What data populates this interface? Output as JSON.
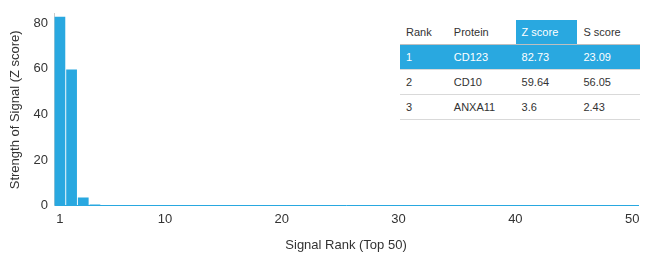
{
  "chart_data": {
    "type": "bar",
    "x_label": "Signal Rank (Top 50)",
    "y_label": "Strength of Signal (Z score)",
    "categories": [
      1,
      null,
      null,
      null,
      null,
      null,
      null,
      null,
      null,
      10,
      null,
      null,
      null,
      null,
      null,
      null,
      null,
      null,
      null,
      20,
      null,
      null,
      null,
      null,
      null,
      null,
      null,
      null,
      null,
      30,
      null,
      null,
      null,
      null,
      null,
      null,
      null,
      null,
      null,
      40,
      null,
      null,
      null,
      null,
      null,
      null,
      null,
      null,
      null,
      50
    ],
    "values": [
      82.73,
      59.64,
      3.6,
      0.6,
      0.4,
      0.4,
      0.4,
      0.3,
      0.3,
      0.3,
      0.3,
      0.3,
      0.3,
      0.3,
      0.3,
      0.3,
      0.3,
      0.3,
      0.3,
      0.3,
      0.3,
      0.3,
      0.3,
      0.3,
      0.3,
      0.3,
      0.3,
      0.3,
      0.3,
      0.3,
      0.3,
      0.3,
      0.3,
      0.3,
      0.3,
      0.3,
      0.3,
      0.3,
      0.3,
      0.3,
      0.3,
      0.3,
      0.3,
      0.3,
      0.3,
      0.3,
      0.3,
      0.3,
      0.3,
      0.3
    ],
    "color": "#29a8e0",
    "ylim": [
      0,
      84
    ],
    "yticks": [
      0,
      20,
      40,
      60,
      80
    ],
    "grid": false,
    "table": {
      "columns": [
        "Rank",
        "Protein",
        "Z score",
        "S score"
      ],
      "rows": [
        [
          1,
          "CD123",
          82.73,
          23.09
        ],
        [
          2,
          "CD10",
          59.64,
          56.05
        ],
        [
          3,
          "ANXA11",
          3.6,
          2.43
        ]
      ]
    }
  }
}
